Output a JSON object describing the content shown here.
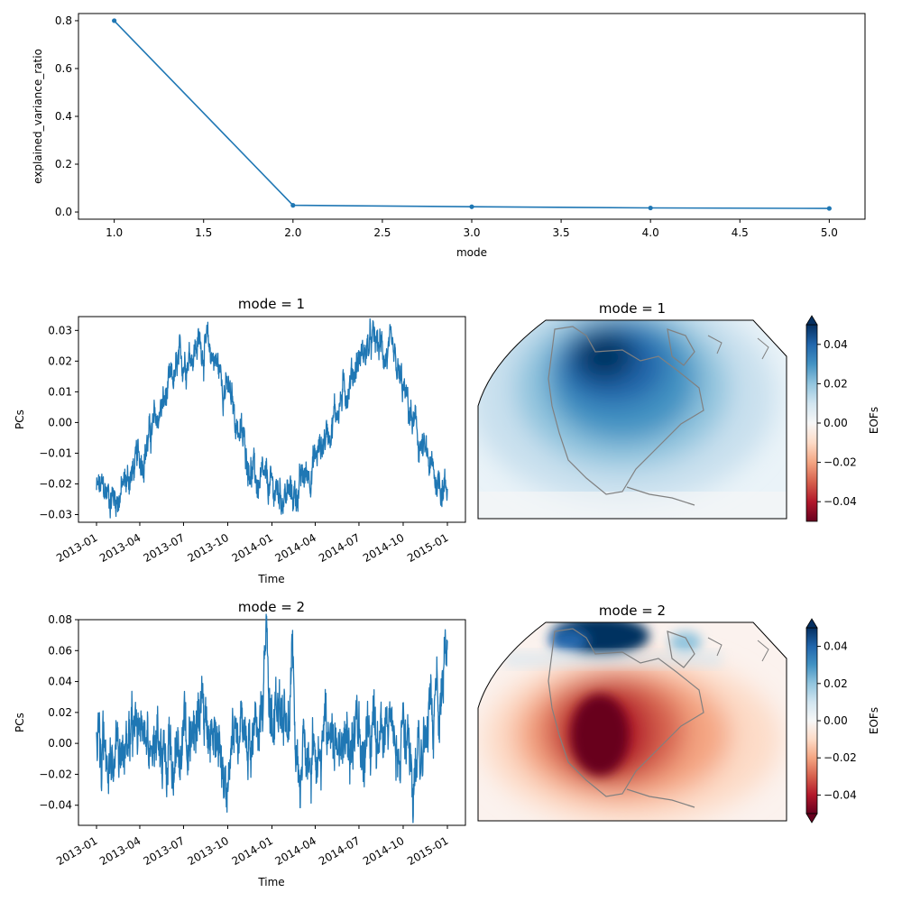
{
  "chart_data": [
    {
      "type": "line",
      "xlabel": "mode",
      "ylabel": "explained_variance_ratio",
      "x": [
        1,
        2,
        3,
        4,
        5
      ],
      "values": [
        0.8,
        0.028,
        0.022,
        0.017,
        0.015
      ],
      "xlim": [
        0.8,
        5.2
      ],
      "ylim": [
        -0.03,
        0.83
      ],
      "xticks": [
        "1.0",
        "1.5",
        "2.0",
        "2.5",
        "3.0",
        "3.5",
        "4.0",
        "4.5",
        "5.0"
      ],
      "yticks": [
        "0.0",
        "0.2",
        "0.4",
        "0.6",
        "0.8"
      ],
      "color": "#1f77b4",
      "marker": "circle",
      "grid": false
    },
    {
      "type": "line",
      "title": "mode = 1",
      "xlabel": "Time",
      "ylabel": "PCs",
      "x_range": [
        "2013-01-01",
        "2015-01-01"
      ],
      "xticks": [
        "2013-01",
        "2013-04",
        "2013-07",
        "2013-10",
        "2014-01",
        "2014-04",
        "2014-07",
        "2014-10",
        "2015-01"
      ],
      "yticks": [
        "−0.03",
        "−0.02",
        "−0.01",
        "0.00",
        "0.01",
        "0.02",
        "0.03"
      ],
      "ylim": [
        -0.0325,
        0.0345
      ],
      "trend_dates": [
        "2013-01-01",
        "2013-02-15",
        "2013-04-01",
        "2013-05-15",
        "2013-07-01",
        "2013-08-01",
        "2013-09-01",
        "2013-10-01",
        "2013-11-01",
        "2013-12-01",
        "2014-01-01",
        "2014-02-15",
        "2014-04-01",
        "2014-05-15",
        "2014-07-01",
        "2014-08-01",
        "2014-09-01",
        "2014-10-01",
        "2014-11-01",
        "2014-12-01",
        "2014-12-31"
      ],
      "trend_values": [
        -0.022,
        -0.024,
        -0.012,
        0.004,
        0.021,
        0.026,
        0.022,
        0.01,
        -0.006,
        -0.02,
        -0.022,
        -0.024,
        -0.012,
        0.004,
        0.021,
        0.026,
        0.022,
        0.01,
        -0.006,
        -0.017,
        -0.021
      ],
      "color": "#1f77b4"
    },
    {
      "type": "heatmap",
      "title": "mode = 1",
      "colorbar_label": "EOFs",
      "colorbar_ticks": [
        "0.04",
        "0.02",
        "0.00",
        "−0.02",
        "−0.04"
      ],
      "vmin": -0.05,
      "vmax": 0.05,
      "colormap": "RdBu"
    },
    {
      "type": "line",
      "title": "mode = 2",
      "xlabel": "Time",
      "ylabel": "PCs",
      "x_range": [
        "2013-01-01",
        "2015-01-01"
      ],
      "xticks": [
        "2013-01",
        "2013-04",
        "2013-07",
        "2013-10",
        "2014-01",
        "2014-04",
        "2014-07",
        "2014-10",
        "2015-01"
      ],
      "yticks": [
        "−0.04",
        "−0.02",
        "0.00",
        "0.02",
        "0.04",
        "0.06",
        "0.08"
      ],
      "ylim": [
        -0.053,
        0.08
      ],
      "trend_dates": [
        "2013-01-01",
        "2013-02-01",
        "2013-03-01",
        "2013-04-01",
        "2013-05-01",
        "2013-06-01",
        "2013-07-01",
        "2013-08-01",
        "2013-09-01",
        "2013-10-01",
        "2013-11-01",
        "2013-12-01",
        "2014-01-01",
        "2014-02-01",
        "2014-03-01",
        "2014-04-01",
        "2014-05-01",
        "2014-06-01",
        "2014-07-01",
        "2014-08-01",
        "2014-09-01",
        "2014-10-01",
        "2014-11-01",
        "2014-12-01",
        "2014-12-31"
      ],
      "trend_values": [
        0.005,
        -0.005,
        0.0,
        0.005,
        0.002,
        -0.002,
        0.008,
        0.012,
        0.0,
        -0.006,
        0.003,
        0.015,
        0.02,
        0.025,
        0.0,
        -0.008,
        0.0,
        0.006,
        0.004,
        -0.004,
        0.002,
        0.003,
        -0.008,
        0.02,
        0.045
      ],
      "color": "#1f77b4"
    },
    {
      "type": "heatmap",
      "title": "mode = 2",
      "colorbar_label": "EOFs",
      "colorbar_ticks": [
        "0.04",
        "0.02",
        "0.00",
        "−0.02",
        "−0.04"
      ],
      "vmin": -0.05,
      "vmax": 0.05,
      "colormap": "RdBu"
    }
  ]
}
